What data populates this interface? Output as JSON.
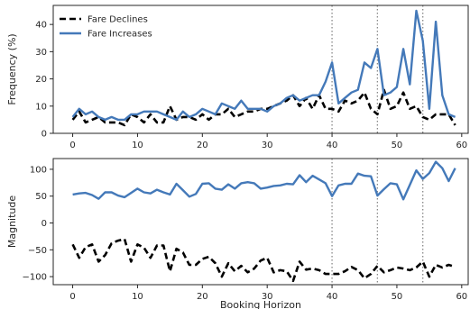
{
  "chart_data": [
    {
      "type": "line",
      "ylabel": "Frequency (%)",
      "xlim": [
        -3,
        61
      ],
      "ylim": [
        0,
        47
      ],
      "xticks": [
        0,
        10,
        20,
        30,
        40,
        50,
        60
      ],
      "yticks": [
        0,
        10,
        20,
        30,
        40
      ],
      "legend": {
        "placement": "top-left"
      },
      "reference_lines_x": [
        40,
        47,
        54
      ],
      "series": [
        {
          "name": "Fare Declines",
          "color": "#000000",
          "style": "dashed",
          "x": [
            0,
            1,
            2,
            3,
            4,
            5,
            6,
            7,
            8,
            9,
            10,
            11,
            12,
            13,
            14,
            15,
            16,
            17,
            18,
            19,
            20,
            21,
            22,
            23,
            24,
            25,
            26,
            27,
            28,
            29,
            30,
            31,
            32,
            33,
            34,
            35,
            36,
            37,
            38,
            39,
            40,
            41,
            42,
            43,
            44,
            45,
            46,
            47,
            48,
            49,
            50,
            51,
            52,
            53,
            54,
            55,
            56,
            57,
            58,
            59
          ],
          "values": [
            5,
            8,
            4,
            5,
            6,
            4,
            4,
            4,
            3,
            7,
            6,
            4,
            7,
            4,
            4,
            10,
            5,
            6,
            6,
            5,
            7,
            5,
            7,
            7,
            9,
            6,
            7,
            8,
            8,
            9,
            9,
            10,
            11,
            12,
            14,
            10,
            13,
            9,
            14,
            9,
            9,
            8,
            12,
            11,
            12,
            15,
            9,
            7,
            16,
            9,
            10,
            15,
            9,
            10,
            6,
            5,
            7,
            7,
            7,
            3
          ]
        },
        {
          "name": "Fare Increases",
          "color": "#4479b9",
          "style": "solid",
          "x": [
            0,
            1,
            2,
            3,
            4,
            5,
            6,
            7,
            8,
            9,
            10,
            11,
            12,
            13,
            14,
            15,
            16,
            17,
            18,
            19,
            20,
            21,
            22,
            23,
            24,
            25,
            26,
            27,
            28,
            29,
            30,
            31,
            32,
            33,
            34,
            35,
            36,
            37,
            38,
            39,
            40,
            41,
            42,
            43,
            44,
            45,
            46,
            47,
            48,
            49,
            50,
            51,
            52,
            53,
            54,
            55,
            56,
            57,
            58,
            59
          ],
          "values": [
            6,
            9,
            7,
            8,
            6,
            5,
            6,
            5,
            5,
            7,
            7,
            8,
            8,
            8,
            7,
            6,
            5,
            8,
            6,
            7,
            9,
            8,
            7,
            11,
            10,
            9,
            12,
            9,
            9,
            9,
            8,
            10,
            11,
            13,
            14,
            12,
            13,
            14,
            14,
            19,
            26,
            11,
            13,
            15,
            16,
            26,
            24,
            31,
            14,
            15,
            17,
            31,
            18,
            45,
            34,
            9,
            41,
            14,
            7,
            6
          ]
        }
      ]
    },
    {
      "type": "line",
      "xlabel": "Booking Horizon",
      "ylabel": "Magnitude",
      "xlim": [
        -3,
        61
      ],
      "ylim": [
        -115,
        120
      ],
      "xticks": [
        0,
        10,
        20,
        30,
        40,
        50,
        60
      ],
      "yticks": [
        -100,
        -50,
        0,
        50,
        100
      ],
      "reference_lines_x": [
        40,
        47,
        54
      ],
      "series": [
        {
          "color": "#4479b9",
          "style": "solid",
          "x": [
            0,
            1,
            2,
            3,
            4,
            5,
            6,
            7,
            8,
            9,
            10,
            11,
            12,
            13,
            14,
            15,
            16,
            17,
            18,
            19,
            20,
            21,
            22,
            23,
            24,
            25,
            26,
            27,
            28,
            29,
            30,
            31,
            32,
            33,
            34,
            35,
            36,
            37,
            38,
            39,
            40,
            41,
            42,
            43,
            44,
            45,
            46,
            47,
            48,
            49,
            50,
            51,
            52,
            53,
            54,
            55,
            56,
            57,
            58,
            59
          ],
          "values": [
            53,
            55,
            56,
            52,
            45,
            57,
            57,
            51,
            48,
            56,
            64,
            57,
            55,
            62,
            57,
            53,
            73,
            61,
            49,
            54,
            73,
            74,
            64,
            62,
            72,
            64,
            74,
            76,
            74,
            64,
            66,
            69,
            70,
            73,
            72,
            89,
            76,
            88,
            81,
            74,
            50,
            70,
            73,
            73,
            92,
            88,
            87,
            51,
            63,
            74,
            72,
            44,
            71,
            98,
            82,
            93,
            114,
            102,
            78,
            102
          ]
        },
        {
          "color": "#000000",
          "style": "dashed",
          "x": [
            0,
            1,
            2,
            3,
            4,
            5,
            6,
            7,
            8,
            9,
            10,
            11,
            12,
            13,
            14,
            15,
            16,
            17,
            18,
            19,
            20,
            21,
            22,
            23,
            24,
            25,
            26,
            27,
            28,
            29,
            30,
            31,
            32,
            33,
            34,
            35,
            36,
            37,
            38,
            39,
            40,
            41,
            42,
            43,
            44,
            45,
            46,
            47,
            48,
            49,
            50,
            51,
            52,
            53,
            54,
            55,
            56,
            57,
            58,
            59
          ],
          "values": [
            -40,
            -65,
            -45,
            -40,
            -72,
            -60,
            -38,
            -33,
            -30,
            -72,
            -40,
            -46,
            -65,
            -42,
            -42,
            -90,
            -48,
            -55,
            -78,
            -78,
            -67,
            -63,
            -75,
            -100,
            -75,
            -90,
            -80,
            -92,
            -85,
            -70,
            -65,
            -92,
            -88,
            -90,
            -108,
            -72,
            -87,
            -85,
            -88,
            -95,
            -95,
            -95,
            -90,
            -82,
            -88,
            -103,
            -95,
            -80,
            -92,
            -88,
            -83,
            -85,
            -88,
            -83,
            -72,
            -100,
            -78,
            -83,
            -78,
            -82
          ]
        }
      ]
    }
  ]
}
